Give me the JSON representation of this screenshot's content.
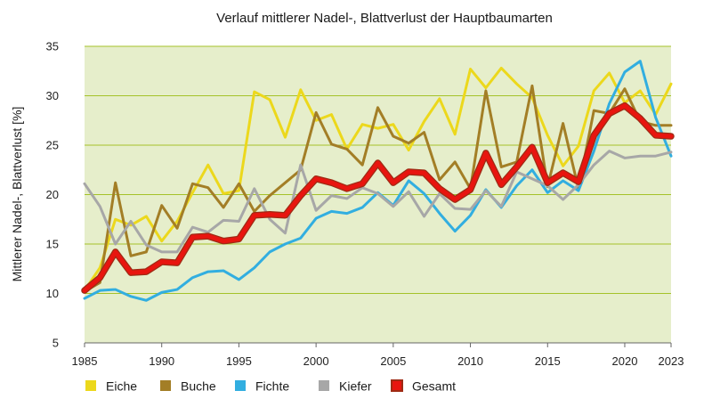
{
  "chart_data": {
    "type": "line",
    "title": "Verlauf mittlerer Nadel-, Blattverlust der Hauptbaumarten",
    "xlabel": "",
    "ylabel": "Mittlerer Nadel-, Blattverlust [%]",
    "xlim": [
      1985,
      2023
    ],
    "ylim": [
      5,
      35
    ],
    "yticks": [
      5,
      10,
      15,
      20,
      25,
      30,
      35
    ],
    "xticks": [
      1985,
      1990,
      1995,
      2000,
      2005,
      2010,
      2015,
      2020,
      2023
    ],
    "grid": true,
    "legend_position": "bottom",
    "plot_background": "#e6eecb",
    "grid_color": "#a5c229",
    "x": [
      1985,
      1986,
      1987,
      1988,
      1989,
      1990,
      1991,
      1992,
      1993,
      1994,
      1995,
      1996,
      1997,
      1998,
      1999,
      2000,
      2001,
      2002,
      2003,
      2004,
      2005,
      2006,
      2007,
      2008,
      2009,
      2010,
      2011,
      2012,
      2013,
      2014,
      2015,
      2016,
      2017,
      2018,
      2019,
      2020,
      2021,
      2022,
      2023
    ],
    "series": [
      {
        "name": "Eiche",
        "color": "#ecd81c",
        "width": 3,
        "values": [
          10.3,
          12.6,
          17.5,
          16.9,
          17.8,
          15.3,
          17.3,
          20.2,
          23.0,
          20.1,
          20.4,
          30.4,
          29.6,
          25.8,
          30.6,
          27.5,
          28.1,
          24.6,
          27.1,
          26.7,
          27.1,
          24.5,
          27.4,
          29.7,
          26.1,
          32.7,
          30.8,
          32.8,
          31.2,
          29.8,
          26.0,
          22.9,
          24.9,
          30.5,
          32.3,
          29.3,
          30.5,
          28.1,
          31.2
        ]
      },
      {
        "name": "Buche",
        "color": "#a37e26",
        "width": 3,
        "values": [
          10.2,
          11.1,
          21.2,
          13.8,
          14.2,
          18.9,
          16.6,
          21.1,
          20.7,
          18.7,
          21.1,
          18.3,
          19.9,
          21.2,
          22.5,
          28.3,
          25.1,
          24.6,
          23.0,
          28.8,
          25.9,
          25.2,
          26.3,
          21.5,
          23.3,
          20.6,
          30.5,
          22.8,
          23.3,
          31.0,
          20.8,
          27.2,
          20.6,
          28.5,
          28.2,
          30.7,
          27.4,
          27.0,
          27.0
        ]
      },
      {
        "name": "Fichte",
        "color": "#32aee0",
        "width": 3,
        "values": [
          9.5,
          10.3,
          10.4,
          9.7,
          9.3,
          10.1,
          10.4,
          11.6,
          12.2,
          12.3,
          11.4,
          12.6,
          14.2,
          15.0,
          15.6,
          17.6,
          18.3,
          18.1,
          18.7,
          20.2,
          18.9,
          21.4,
          20.1,
          18.1,
          16.3,
          17.9,
          20.5,
          18.7,
          20.9,
          22.5,
          20.2,
          21.4,
          20.4,
          24.4,
          29.2,
          32.4,
          33.5,
          27.8,
          23.9
        ]
      },
      {
        "name": "Kiefer",
        "color": "#a7a7a7",
        "width": 3,
        "values": [
          21.1,
          18.8,
          15.0,
          17.3,
          14.9,
          14.2,
          14.2,
          16.7,
          16.2,
          17.4,
          17.3,
          20.6,
          17.5,
          16.1,
          23.0,
          18.4,
          19.9,
          19.6,
          20.7,
          20.1,
          18.8,
          20.3,
          17.8,
          20.1,
          18.6,
          18.5,
          20.4,
          18.8,
          22.3,
          21.6,
          20.9,
          19.5,
          21.0,
          23.0,
          24.4,
          23.7,
          23.9,
          23.9,
          24.3
        ]
      },
      {
        "name": "Gesamt",
        "color": "#e8150f",
        "outline": "#9e2b14",
        "width": 5,
        "values": [
          10.3,
          11.6,
          14.2,
          12.1,
          12.2,
          13.2,
          13.1,
          15.7,
          15.8,
          15.3,
          15.5,
          17.9,
          18.0,
          17.9,
          19.9,
          21.6,
          21.2,
          20.6,
          21.1,
          23.2,
          21.2,
          22.3,
          22.2,
          20.6,
          19.5,
          20.5,
          24.2,
          21.0,
          22.8,
          24.8,
          21.2,
          22.2,
          21.3,
          26.0,
          28.2,
          29.0,
          27.7,
          26.0,
          25.9
        ]
      }
    ]
  }
}
